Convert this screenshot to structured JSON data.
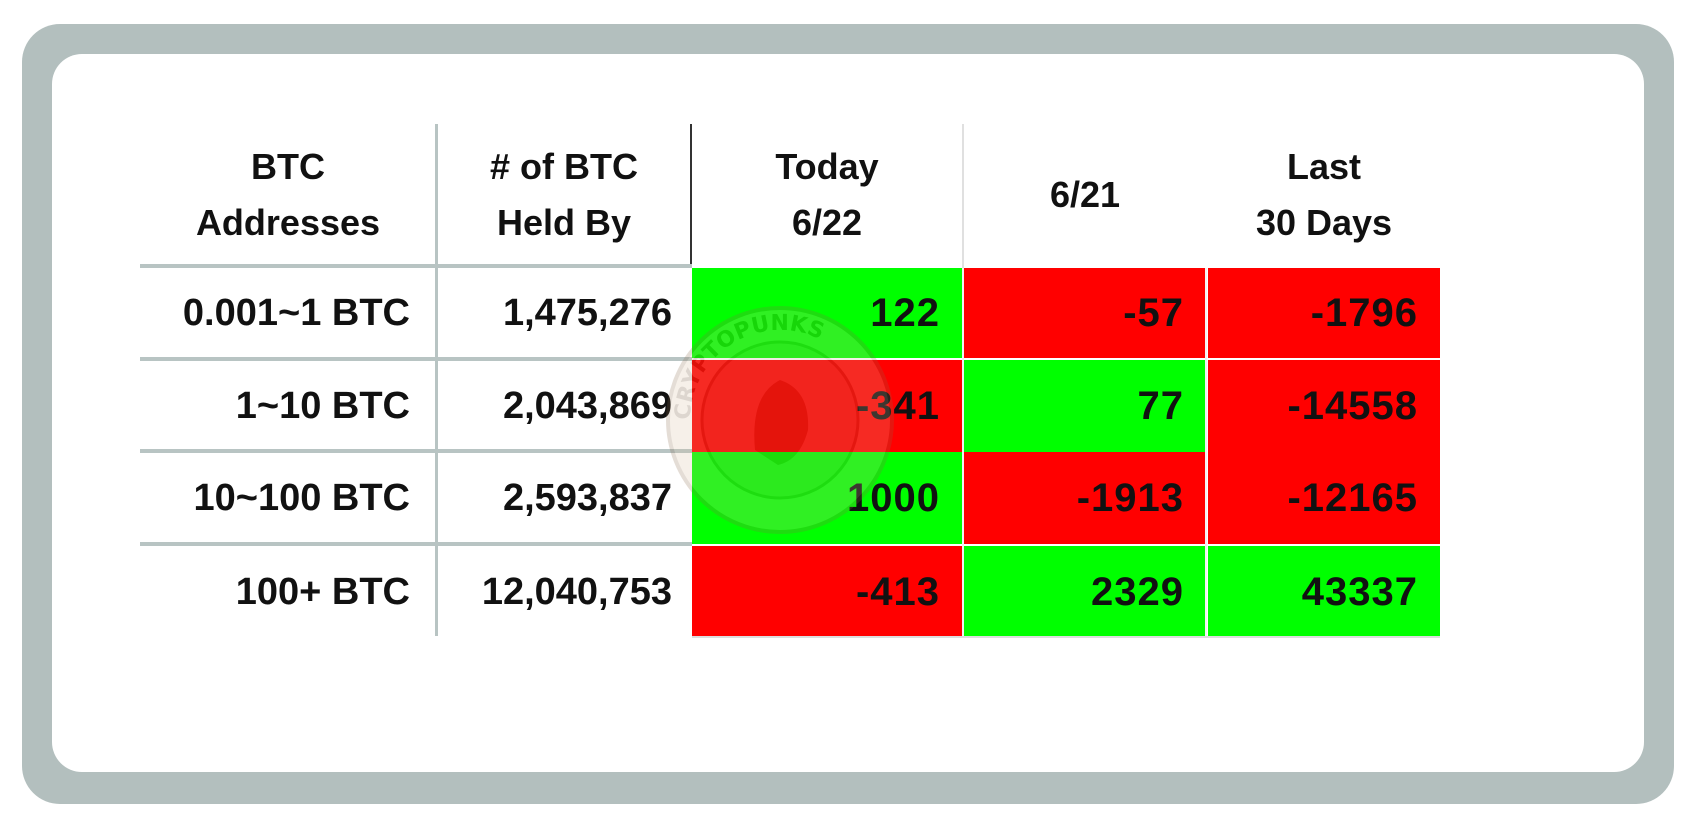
{
  "table": {
    "headers": [
      "BTC\nAddresses",
      "# of BTC\nHeld By",
      "Today\n6/22",
      "6/21",
      "Last\n30 Days"
    ],
    "rows": [
      {
        "label": "0.001~1 BTC",
        "held": "1,475,276",
        "today": "122",
        "prev": "-57",
        "last30": "-1796"
      },
      {
        "label": "1~10 BTC",
        "held": "2,043,869",
        "today": "-341",
        "prev": "77",
        "last30": "-14558"
      },
      {
        "label": "10~100 BTC",
        "held": "2,593,837",
        "today": "1000",
        "prev": "-1913",
        "last30": "-12165"
      },
      {
        "label": "100+ BTC",
        "held": "12,040,753",
        "today": "-413",
        "prev": "2329",
        "last30": "43337"
      }
    ]
  },
  "colors": {
    "positive": "#00ff00",
    "negative": "#ff0000",
    "frame": "#b3bfbe"
  },
  "watermark": {
    "icon": "cryptopunks-seal-icon",
    "text": "CRYPTOPUNKS"
  }
}
